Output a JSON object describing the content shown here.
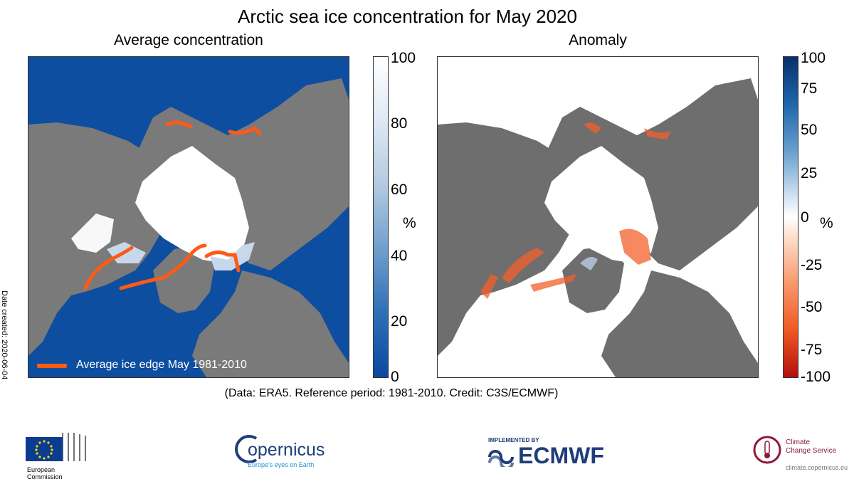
{
  "title": "Arctic sea ice concentration for May 2020",
  "panels": {
    "left": {
      "title": "Average concentration",
      "colorbar": {
        "ticks": [
          "100",
          "80",
          "60",
          "40",
          "20",
          "0"
        ],
        "unit": "%",
        "colors": [
          "#ffffff",
          "#0d47a1"
        ]
      },
      "legend": {
        "label": "Average ice edge May 1981-2010",
        "color": "#ff5a14"
      },
      "ocean_color": "#0d4ea0",
      "land_color": "#7a7a7a",
      "ice_color": "#ffffff"
    },
    "right": {
      "title": "Anomaly",
      "colorbar": {
        "ticks": [
          "100",
          "75",
          "50",
          "25",
          "0",
          "-25",
          "-50",
          "-75",
          "-100"
        ],
        "unit": "%",
        "colors": [
          "#08306b",
          "#ffffff",
          "#b40e0e"
        ]
      },
      "ocean_color": "#ffffff",
      "land_color": "#6e6e6e",
      "anomaly_color": "#f4602a"
    }
  },
  "date_created": "Date created: 2020-06-04",
  "credit": "(Data: ERA5.  Reference period: 1981-2010.  Credit: C3S/ECMWF)",
  "logos": {
    "ec": {
      "line1": "European",
      "line2": "Commission"
    },
    "copernicus": {
      "name": "opernicus",
      "tagline": "Europe's eyes on Earth"
    },
    "ecmwf": {
      "implemented_by": "IMPLEMENTED BY",
      "name": "ECMWF"
    },
    "c3s": {
      "line1": "Climate",
      "line2": "Change Service",
      "url": "climate.copernicus.eu"
    }
  }
}
